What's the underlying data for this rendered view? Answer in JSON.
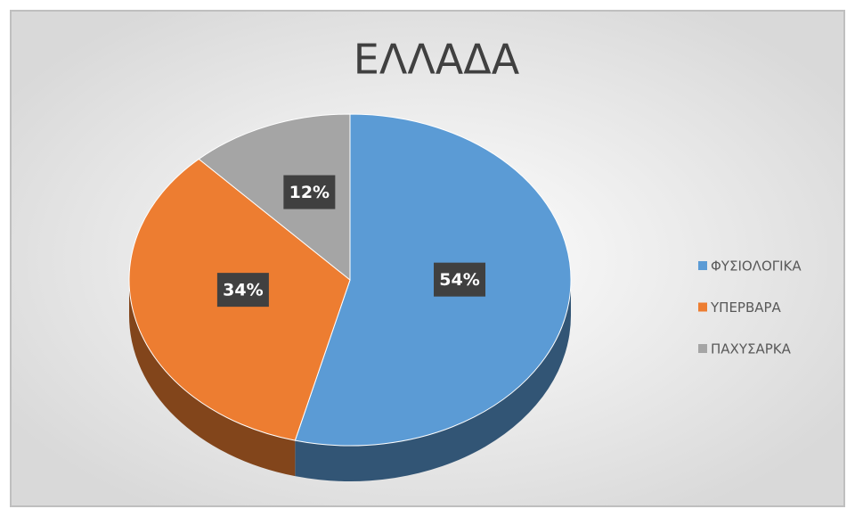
{
  "chart_data": {
    "type": "pie3d",
    "title": "ΕΛΛΑΔΑ",
    "categories": [
      "ΦΥΣΙΟΛΟΓΙΚΑ",
      "ΥΠΕΡΒΑΡΑ",
      "ΠΑΧΥΣΑΡΚΑ"
    ],
    "values": [
      54,
      34,
      12
    ],
    "value_labels": [
      "54%",
      "34%",
      "12%"
    ],
    "colors": [
      "#5b9bd5",
      "#ed7d31",
      "#a5a5a5"
    ],
    "legend": "right"
  }
}
